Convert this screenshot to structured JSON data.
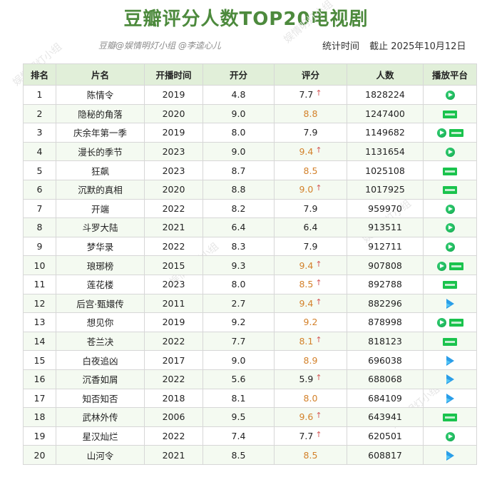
{
  "title": "豆瓣评分人数TOP20电视剧",
  "credit": "豆瓣@娱情明灯小组 @李逵心儿",
  "stat_label": "统计时间",
  "stat_date": "截止 2025年10月12日",
  "watermark_text": "娱情明灯小组",
  "headers": [
    "排名",
    "片名",
    "开播时间",
    "开分",
    "评分",
    "人数",
    "播放平台"
  ],
  "colors": {
    "title": "#4d8a3d",
    "header_bg": "#e1efd9",
    "highlight_score": "#d3812a",
    "arrow": "#d55a5a"
  },
  "rows": [
    {
      "rank": "1",
      "name": "陈情令",
      "year": "2019",
      "open": "4.8",
      "score": "7.7",
      "up": true,
      "hi": false,
      "count": "1828224",
      "platforms": [
        "tencent-video"
      ]
    },
    {
      "rank": "2",
      "name": "隐秘的角落",
      "year": "2020",
      "open": "9.0",
      "score": "8.8",
      "up": false,
      "hi": true,
      "count": "1247400",
      "platforms": [
        "iqiyi"
      ]
    },
    {
      "rank": "3",
      "name": "庆余年第一季",
      "year": "2019",
      "open": "8.0",
      "score": "7.9",
      "up": false,
      "hi": false,
      "count": "1149682",
      "platforms": [
        "tencent-video",
        "iqiyi"
      ]
    },
    {
      "rank": "4",
      "name": "漫长的季节",
      "year": "2023",
      "open": "9.0",
      "score": "9.4",
      "up": true,
      "hi": true,
      "count": "1131654",
      "platforms": [
        "tencent-video"
      ]
    },
    {
      "rank": "5",
      "name": "狂飙",
      "year": "2023",
      "open": "8.7",
      "score": "8.5",
      "up": false,
      "hi": true,
      "count": "1025108",
      "platforms": [
        "iqiyi"
      ]
    },
    {
      "rank": "6",
      "name": "沉默的真相",
      "year": "2020",
      "open": "8.8",
      "score": "9.0",
      "up": true,
      "hi": true,
      "count": "1017925",
      "platforms": [
        "iqiyi"
      ]
    },
    {
      "rank": "7",
      "name": "开端",
      "year": "2022",
      "open": "8.2",
      "score": "7.9",
      "up": false,
      "hi": false,
      "count": "959970",
      "platforms": [
        "tencent-video"
      ]
    },
    {
      "rank": "8",
      "name": "斗罗大陆",
      "year": "2021",
      "open": "6.4",
      "score": "6.4",
      "up": false,
      "hi": false,
      "count": "913511",
      "platforms": [
        "tencent-video"
      ]
    },
    {
      "rank": "9",
      "name": "梦华录",
      "year": "2022",
      "open": "8.3",
      "score": "7.9",
      "up": false,
      "hi": false,
      "count": "912711",
      "platforms": [
        "tencent-video"
      ]
    },
    {
      "rank": "10",
      "name": "琅琊榜",
      "year": "2015",
      "open": "9.3",
      "score": "9.4",
      "up": true,
      "hi": true,
      "count": "907808",
      "platforms": [
        "tencent-video",
        "iqiyi"
      ]
    },
    {
      "rank": "11",
      "name": "莲花楼",
      "year": "2023",
      "open": "8.0",
      "score": "8.5",
      "up": true,
      "hi": true,
      "count": "892788",
      "platforms": [
        "iqiyi"
      ]
    },
    {
      "rank": "12",
      "name": "后宫·甄嬛传",
      "year": "2011",
      "open": "2.7",
      "score": "9.4",
      "up": true,
      "hi": true,
      "count": "882296",
      "platforms": [
        "youku"
      ]
    },
    {
      "rank": "13",
      "name": "想见你",
      "year": "2019",
      "open": "9.2",
      "score": "9.2",
      "up": false,
      "hi": true,
      "count": "878998",
      "platforms": [
        "tencent-video",
        "iqiyi"
      ]
    },
    {
      "rank": "14",
      "name": "苍兰决",
      "year": "2022",
      "open": "7.7",
      "score": "8.1",
      "up": true,
      "hi": true,
      "count": "818123",
      "platforms": [
        "iqiyi"
      ]
    },
    {
      "rank": "15",
      "name": "白夜追凶",
      "year": "2017",
      "open": "9.0",
      "score": "8.9",
      "up": false,
      "hi": true,
      "count": "696038",
      "platforms": [
        "youku"
      ]
    },
    {
      "rank": "16",
      "name": "沉香如屑",
      "year": "2022",
      "open": "5.6",
      "score": "5.9",
      "up": true,
      "hi": false,
      "count": "688068",
      "platforms": [
        "youku"
      ]
    },
    {
      "rank": "17",
      "name": "知否知否",
      "year": "2018",
      "open": "8.1",
      "score": "8.0",
      "up": false,
      "hi": true,
      "count": "684109",
      "platforms": [
        "youku"
      ]
    },
    {
      "rank": "18",
      "name": "武林外传",
      "year": "2006",
      "open": "9.5",
      "score": "9.6",
      "up": true,
      "hi": true,
      "count": "643941",
      "platforms": [
        "iqiyi"
      ]
    },
    {
      "rank": "19",
      "name": "星汉灿烂",
      "year": "2022",
      "open": "7.4",
      "score": "7.7",
      "up": true,
      "hi": false,
      "count": "620501",
      "platforms": [
        "tencent-video"
      ]
    },
    {
      "rank": "20",
      "name": "山河令",
      "year": "2021",
      "open": "8.5",
      "score": "8.5",
      "up": false,
      "hi": true,
      "count": "608817",
      "platforms": [
        "youku"
      ]
    }
  ]
}
